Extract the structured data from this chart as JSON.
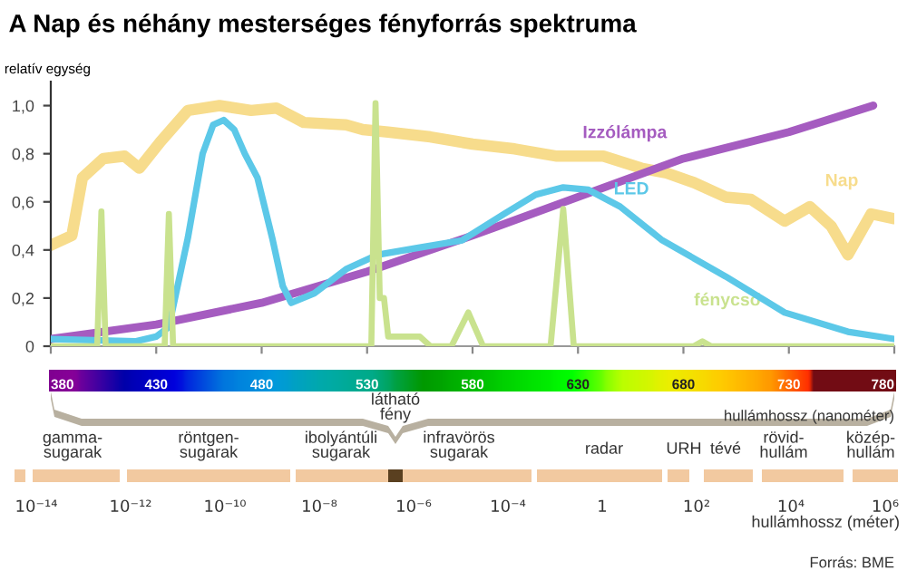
{
  "chart_data": [
    {
      "type": "line",
      "title": "A Nap és néhány mesterséges fényforrás spektruma",
      "ylabel": "relatív egység",
      "xlabel": "hullámhossz (nanométer)",
      "xlim": [
        380,
        780
      ],
      "xticks": [
        380,
        430,
        480,
        530,
        580,
        630,
        680,
        730,
        780
      ],
      "ylim": [
        0,
        1.1
      ],
      "yticks": [
        0,
        {
          "value": 0.2,
          "label": "0,2"
        },
        {
          "value": 0.4,
          "label": "0,4"
        },
        {
          "value": 0.6,
          "label": "0,6"
        },
        {
          "value": 0.8,
          "label": "0,8"
        },
        {
          "value": 1.0,
          "label": "1,0"
        }
      ],
      "grid": false,
      "legend": false,
      "series": [
        {
          "name": "Nap",
          "color": "#f7dc8c",
          "x": [
            380,
            390,
            395,
            405,
            415,
            422,
            432,
            445,
            460,
            475,
            487,
            500,
            520,
            528,
            540,
            560,
            580,
            600,
            620,
            642,
            660,
            672,
            685,
            700,
            712,
            728,
            740,
            750,
            758,
            769,
            780
          ],
          "values": [
            0.42,
            0.46,
            0.7,
            0.78,
            0.79,
            0.74,
            0.85,
            0.98,
            1.0,
            0.98,
            0.99,
            0.93,
            0.92,
            0.9,
            0.89,
            0.87,
            0.84,
            0.82,
            0.79,
            0.79,
            0.74,
            0.72,
            0.68,
            0.62,
            0.61,
            0.52,
            0.58,
            0.5,
            0.38,
            0.55,
            0.53
          ]
        },
        {
          "name": "Izzólámpa",
          "color": "#a55cc0",
          "x": [
            380,
            430,
            480,
            530,
            580,
            630,
            680,
            730,
            770
          ],
          "values": [
            0.03,
            0.09,
            0.18,
            0.31,
            0.46,
            0.62,
            0.78,
            0.89,
            1.0
          ]
        },
        {
          "name": "LED",
          "color": "#5cc8e8",
          "x": [
            380,
            420,
            430,
            436,
            445,
            452,
            457,
            462,
            467,
            472,
            478,
            485,
            490,
            494,
            505,
            520,
            535,
            555,
            575,
            595,
            610,
            623,
            635,
            650,
            670,
            700,
            728,
            758,
            780
          ],
          "values": [
            0.03,
            0.02,
            0.04,
            0.08,
            0.45,
            0.8,
            0.92,
            0.94,
            0.9,
            0.8,
            0.7,
            0.45,
            0.25,
            0.18,
            0.22,
            0.32,
            0.38,
            0.41,
            0.44,
            0.55,
            0.63,
            0.66,
            0.65,
            0.58,
            0.44,
            0.29,
            0.14,
            0.06,
            0.03
          ]
        },
        {
          "name": "fénycső",
          "color": "#c9e28e",
          "x": [
            380,
            402,
            404,
            406,
            434,
            436,
            438,
            532,
            534,
            536,
            538,
            540,
            555,
            560,
            570,
            578,
            585,
            617,
            623,
            628,
            685,
            689,
            693,
            780
          ],
          "values": [
            0,
            0,
            0.56,
            0,
            0,
            0.55,
            0,
            0,
            1.01,
            0.2,
            0.2,
            0.04,
            0.04,
            0,
            0,
            0.14,
            0,
            0,
            0.57,
            0,
            0,
            0.02,
            0,
            0
          ]
        }
      ]
    },
    {
      "type": "other",
      "xlabel": "hullámhossz (méter)",
      "categories": [
        "10⁻¹⁴",
        "10⁻¹²",
        "10⁻¹⁰",
        "10⁻⁸",
        "10⁻⁶",
        "10⁻⁴",
        "1",
        "10²",
        "10⁴",
        "10⁶"
      ],
      "annotations": [
        "gamma-\nsugarak",
        "röntgen-\nsugarak",
        "ibolyántúli\nsugarak",
        "látható\nfény",
        "infravörös\nsugarak",
        "radar",
        "URH",
        "tévé",
        "rövid-\nhullám",
        "közép-\nhullám",
        "Forrás: BME"
      ]
    }
  ]
}
